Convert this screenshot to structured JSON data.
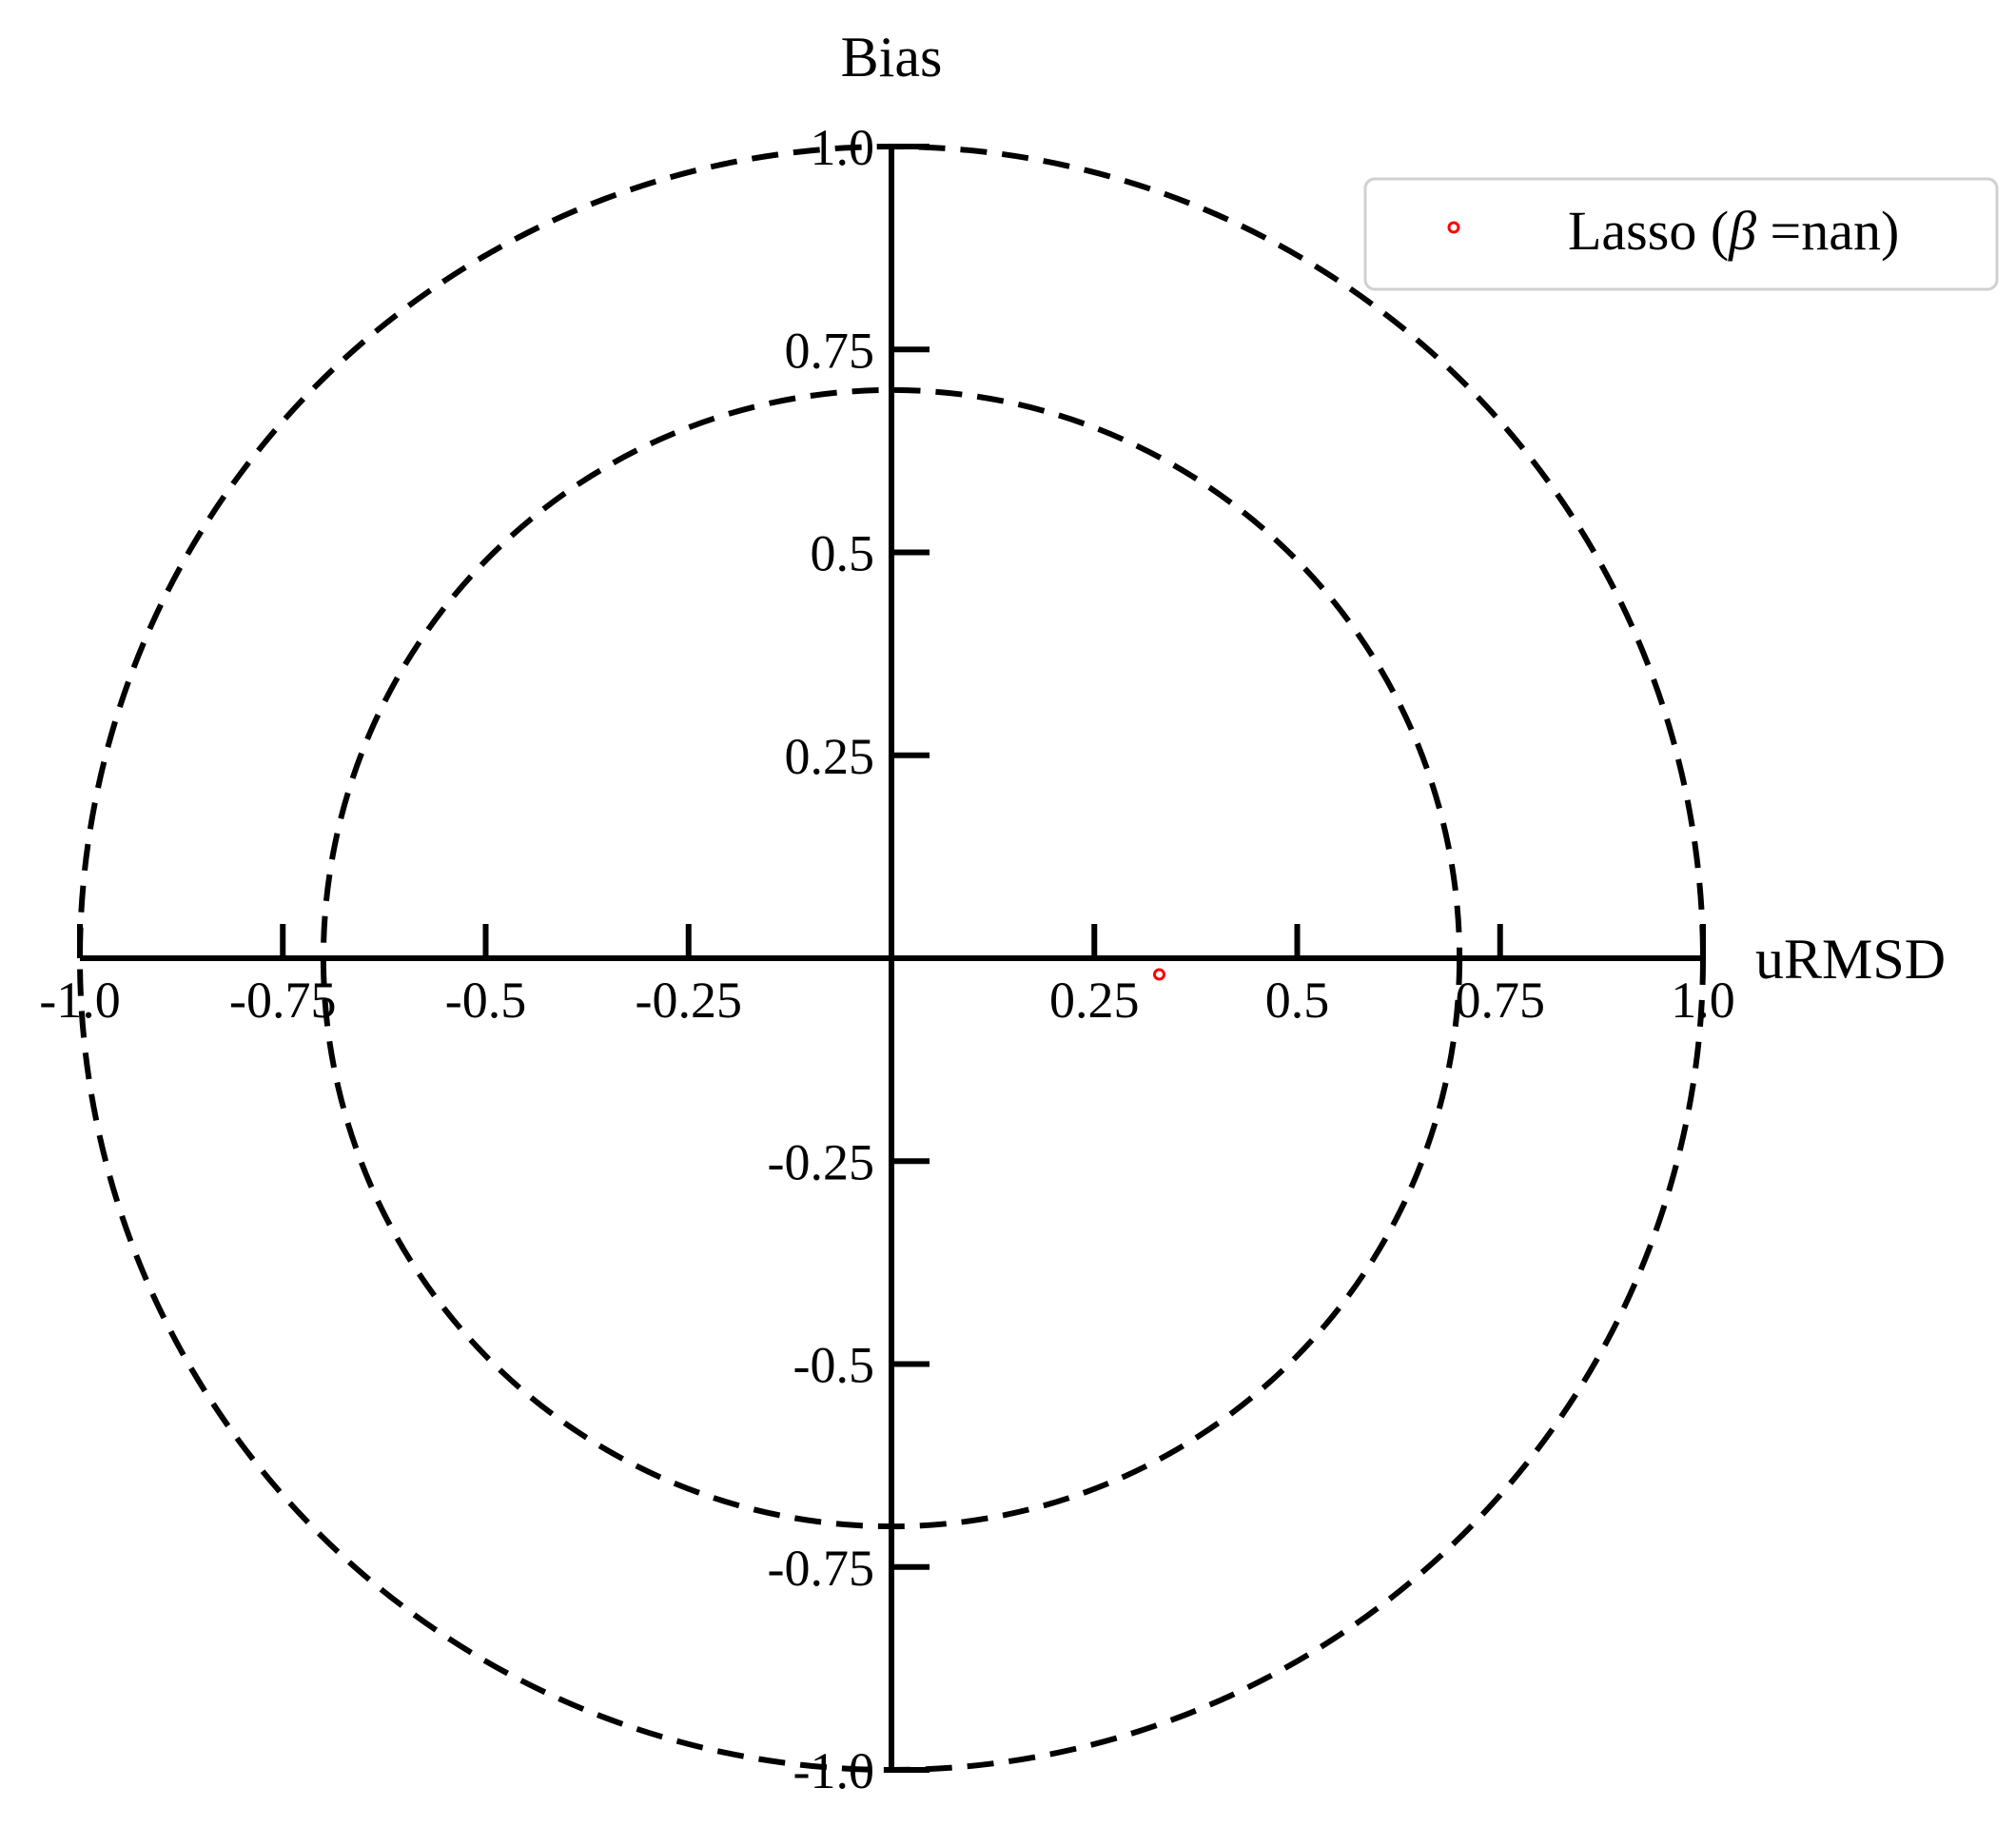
{
  "chart_data": {
    "type": "scatter",
    "title": "",
    "xlabel": "uRMSD",
    "ylabel": "Bias",
    "xlim": [
      -1.0,
      1.0
    ],
    "ylim": [
      -1.0,
      1.0
    ],
    "x_ticks": [
      {
        "value": -1.0,
        "label": "-1.0"
      },
      {
        "value": -0.75,
        "label": "-0.75"
      },
      {
        "value": -0.5,
        "label": "-0.5"
      },
      {
        "value": -0.25,
        "label": "-0.25"
      },
      {
        "value": 0.25,
        "label": "0.25"
      },
      {
        "value": 0.5,
        "label": "0.5"
      },
      {
        "value": 0.75,
        "label": "0.75"
      },
      {
        "value": 1.0,
        "label": "1.0"
      }
    ],
    "y_ticks": [
      {
        "value": 1.0,
        "label": "1.0"
      },
      {
        "value": 0.75,
        "label": "0.75"
      },
      {
        "value": 0.5,
        "label": "0.5"
      },
      {
        "value": 0.25,
        "label": "0.25"
      },
      {
        "value": -0.25,
        "label": "-0.25"
      },
      {
        "value": -0.5,
        "label": "-0.5"
      },
      {
        "value": -0.75,
        "label": "-0.75"
      },
      {
        "value": -1.0,
        "label": "-1.0"
      }
    ],
    "reference_circles": [
      {
        "radius": 1.0,
        "style": "dashed"
      },
      {
        "radius": 0.7,
        "style": "dashed"
      }
    ],
    "series": [
      {
        "name": "Lasso (β =nan)",
        "color": "#ff0000",
        "marker": "open-circle",
        "points": [
          {
            "x": 0.33,
            "y": -0.02
          }
        ]
      }
    ],
    "legend": {
      "placement": "top-right",
      "entries": [
        {
          "prefix": "Lasso (",
          "symbol": "β",
          "suffix": " =nan)"
        }
      ]
    },
    "grid": false
  }
}
